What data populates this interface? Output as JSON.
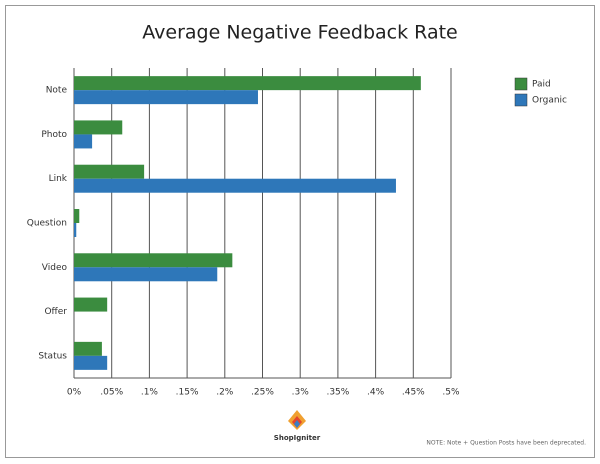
{
  "chart_data": {
    "type": "hbar",
    "title": "Average Negative Feedback Rate",
    "categories": [
      "Note",
      "Photo",
      "Link",
      "Question",
      "Video",
      "Offer",
      "Status"
    ],
    "series": [
      {
        "name": "Paid",
        "color": "#3b8c3f",
        "values": [
          0.46,
          0.064,
          0.093,
          0.007,
          0.21,
          0.044,
          0.037
        ]
      },
      {
        "name": "Organic",
        "color": "#2e77b9",
        "values": [
          0.244,
          0.024,
          0.427,
          0.003,
          0.19,
          null,
          0.044
        ]
      }
    ],
    "xlim": [
      0,
      0.5
    ],
    "xticks": [
      {
        "value": 0,
        "label": "0%"
      },
      {
        "value": 0.05,
        "label": ".05%"
      },
      {
        "value": 0.1,
        "label": ".1%"
      },
      {
        "value": 0.15,
        "label": ".15%"
      },
      {
        "value": 0.2,
        "label": ".2%"
      },
      {
        "value": 0.25,
        "label": ".25%"
      },
      {
        "value": 0.3,
        "label": ".3%"
      },
      {
        "value": 0.35,
        "label": ".35%"
      },
      {
        "value": 0.4,
        "label": ".4%"
      },
      {
        "value": 0.45,
        "label": ".45%"
      },
      {
        "value": 0.5,
        "label": ".5%"
      }
    ],
    "grid": true,
    "legend": "upper right",
    "brand": "ShopIgniter",
    "footnote": "NOTE: Note + Question Posts have been deprecated."
  }
}
